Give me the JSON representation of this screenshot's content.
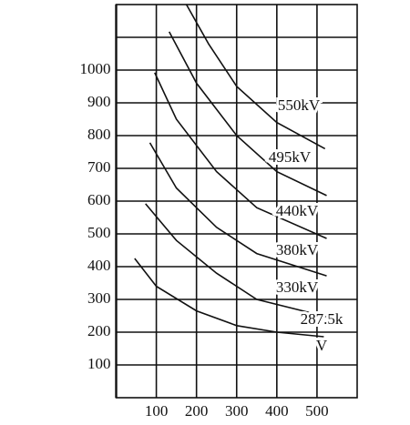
{
  "chart_data": {
    "type": "line",
    "xlim": [
      0,
      600
    ],
    "ylim": [
      0,
      1200
    ],
    "xticks": [
      100,
      200,
      300,
      400,
      500
    ],
    "yticks": [
      100,
      200,
      300,
      400,
      500,
      600,
      700,
      800,
      900,
      1000
    ],
    "grid": true,
    "series": [
      {
        "name": "550kV",
        "color": "#111111",
        "x": [
          175,
          230,
          300,
          400,
          520
        ],
        "values": [
          1200,
          1080,
          950,
          840,
          760
        ]
      },
      {
        "name": "495kV",
        "color": "#111111",
        "x": [
          132,
          200,
          300,
          400,
          524
        ],
        "values": [
          1117,
          960,
          800,
          690,
          617
        ]
      },
      {
        "name": "440kV",
        "color": "#111111",
        "x": [
          96,
          150,
          250,
          350,
          524
        ],
        "values": [
          992,
          850,
          690,
          580,
          486
        ]
      },
      {
        "name": "380kV",
        "color": "#111111",
        "x": [
          84,
          150,
          250,
          350,
          524
        ],
        "values": [
          778,
          640,
          520,
          440,
          372
        ]
      },
      {
        "name": "330kV",
        "color": "#111111",
        "x": [
          73,
          150,
          250,
          350,
          524
        ],
        "values": [
          592,
          480,
          380,
          300,
          247
        ]
      },
      {
        "name": "287.5k\nV",
        "color": "#111111",
        "x": [
          46,
          100,
          200,
          300,
          400,
          517
        ],
        "values": [
          425,
          340,
          265,
          220,
          200,
          186
        ]
      }
    ]
  }
}
